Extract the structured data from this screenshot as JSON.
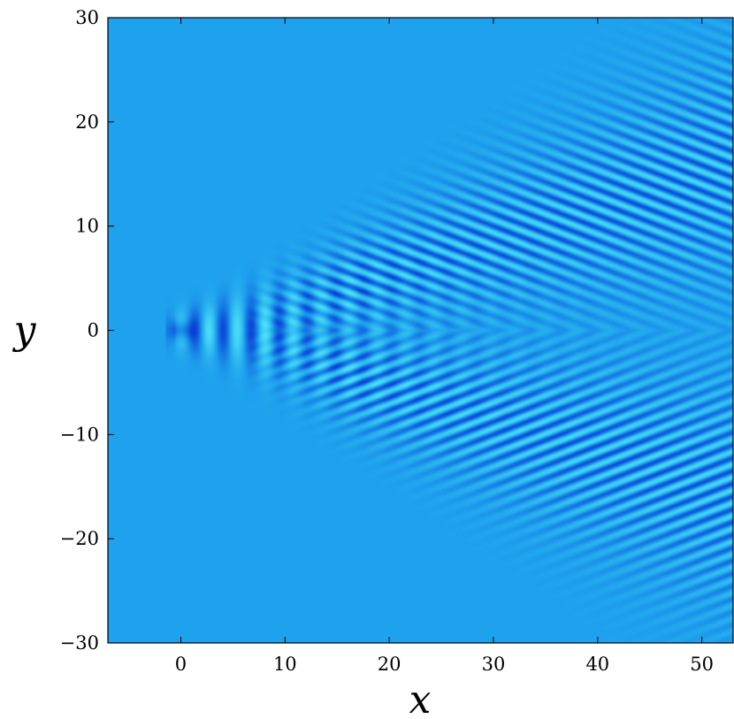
{
  "chart_data": {
    "type": "heatmap",
    "title": "",
    "xlabel": "x",
    "ylabel": "y",
    "xlim": [
      -7,
      53
    ],
    "ylim": [
      -30,
      30
    ],
    "x_ticks": [
      0,
      10,
      20,
      30,
      40,
      50
    ],
    "y_ticks": [
      -30,
      -20,
      -10,
      0,
      10,
      20,
      30
    ],
    "x_tick_labels": [
      "0",
      "10",
      "20",
      "30",
      "40",
      "50"
    ],
    "y_tick_labels": [
      "−30",
      "−20",
      "−10",
      "0",
      "10",
      "20",
      "30"
    ],
    "colors": {
      "background": "#1fa2ed",
      "crest": "#0a3fd6",
      "trough": "#4ee3f7"
    },
    "field": {
      "source_x": 0,
      "source_y": 0,
      "wake_half_angle_deg": 16,
      "transverse_wavelength": 2.7,
      "divergent_wavelength": 3.2
    },
    "grid": false,
    "legend": "none"
  }
}
